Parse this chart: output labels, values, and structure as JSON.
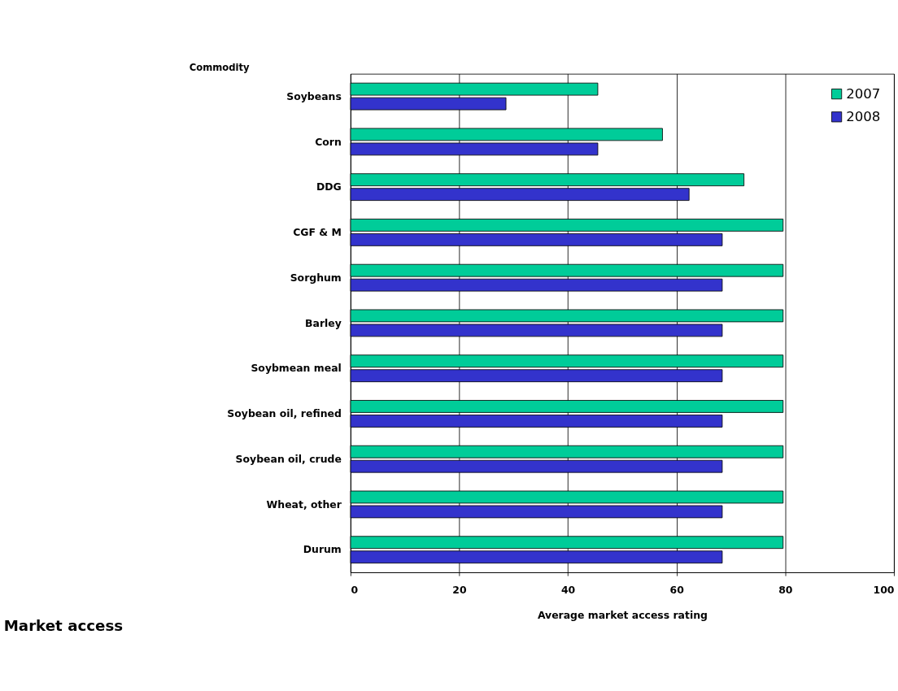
{
  "chart_data": {
    "type": "bar",
    "orientation": "horizontal",
    "title": "Market access",
    "xlabel": "Average market access rating",
    "ylabel": "Commodity",
    "categories": [
      "Soybeans",
      "Corn",
      "DDG",
      "CGF & M",
      "Sorghum",
      "Barley",
      "Soybmean meal",
      "Soybean oil, refined",
      "Soybean oil, crude",
      "Wheat, other",
      "Durum"
    ],
    "series": [
      {
        "name": "2007",
        "color": "#00cc99",
        "values": [
          45.5,
          57.4,
          72.4,
          79.6,
          79.6,
          79.6,
          79.6,
          79.6,
          79.6,
          79.6,
          79.6
        ]
      },
      {
        "name": "2008",
        "color": "#3333cc",
        "values": [
          28.6,
          45.5,
          62.3,
          68.4,
          68.4,
          68.4,
          68.4,
          68.4,
          68.4,
          68.4,
          68.4
        ]
      }
    ],
    "xlim": [
      0,
      100
    ],
    "xticks": [
      0,
      20,
      40,
      60,
      80,
      100
    ],
    "grid": "x",
    "legend": "top right"
  }
}
